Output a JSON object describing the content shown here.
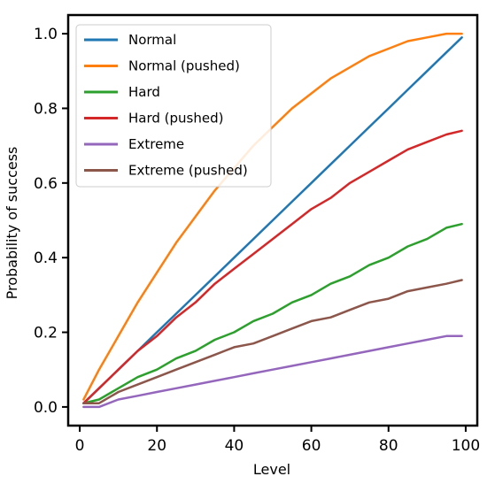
{
  "chart_data": {
    "type": "line",
    "xlabel": "Level",
    "ylabel": "Probability of success",
    "xlim": [
      -3,
      103
    ],
    "ylim": [
      -0.05,
      1.05
    ],
    "xticks": [
      0,
      20,
      40,
      60,
      80,
      100
    ],
    "xtick_labels": [
      "0",
      "20",
      "40",
      "60",
      "80",
      "100"
    ],
    "yticks": [
      0.0,
      0.2,
      0.4,
      0.6,
      0.8,
      1.0
    ],
    "ytick_labels": [
      "0.0",
      "0.2",
      "0.4",
      "0.6",
      "0.8",
      "1.0"
    ],
    "grid": false,
    "legend_position": "top-left",
    "x": [
      1,
      5,
      10,
      15,
      20,
      25,
      30,
      35,
      40,
      45,
      50,
      55,
      60,
      65,
      70,
      75,
      80,
      85,
      90,
      95,
      99
    ],
    "series": [
      {
        "name": "Normal",
        "color": "#1f77b4",
        "values": [
          0.01,
          0.05,
          0.1,
          0.15,
          0.2,
          0.25,
          0.3,
          0.35,
          0.4,
          0.45,
          0.5,
          0.55,
          0.6,
          0.65,
          0.7,
          0.75,
          0.8,
          0.85,
          0.9,
          0.95,
          0.99
        ]
      },
      {
        "name": "Normal (pushed)",
        "color": "#ff7f0e",
        "values": [
          0.02,
          0.1,
          0.19,
          0.28,
          0.36,
          0.44,
          0.51,
          0.58,
          0.64,
          0.7,
          0.75,
          0.8,
          0.84,
          0.88,
          0.91,
          0.94,
          0.96,
          0.98,
          0.99,
          1.0,
          1.0
        ]
      },
      {
        "name": "Hard",
        "color": "#2ca02c",
        "values": [
          0.01,
          0.02,
          0.05,
          0.08,
          0.1,
          0.13,
          0.15,
          0.18,
          0.2,
          0.23,
          0.25,
          0.28,
          0.3,
          0.33,
          0.35,
          0.38,
          0.4,
          0.43,
          0.45,
          0.48,
          0.49
        ]
      },
      {
        "name": "Hard (pushed)",
        "color": "#d62728",
        "values": [
          0.01,
          0.05,
          0.1,
          0.15,
          0.19,
          0.24,
          0.28,
          0.33,
          0.37,
          0.41,
          0.45,
          0.49,
          0.53,
          0.56,
          0.6,
          0.63,
          0.66,
          0.69,
          0.71,
          0.73,
          0.74
        ]
      },
      {
        "name": "Extreme",
        "color": "#9467bd",
        "values": [
          0.0,
          0.0,
          0.02,
          0.03,
          0.04,
          0.05,
          0.06,
          0.07,
          0.08,
          0.09,
          0.1,
          0.11,
          0.12,
          0.13,
          0.14,
          0.15,
          0.16,
          0.17,
          0.18,
          0.19,
          0.19
        ]
      },
      {
        "name": "Extreme (pushed)",
        "color": "#8c564b",
        "values": [
          0.01,
          0.01,
          0.04,
          0.06,
          0.08,
          0.1,
          0.12,
          0.14,
          0.16,
          0.17,
          0.19,
          0.21,
          0.23,
          0.24,
          0.26,
          0.28,
          0.29,
          0.31,
          0.32,
          0.33,
          0.34
        ]
      }
    ]
  }
}
